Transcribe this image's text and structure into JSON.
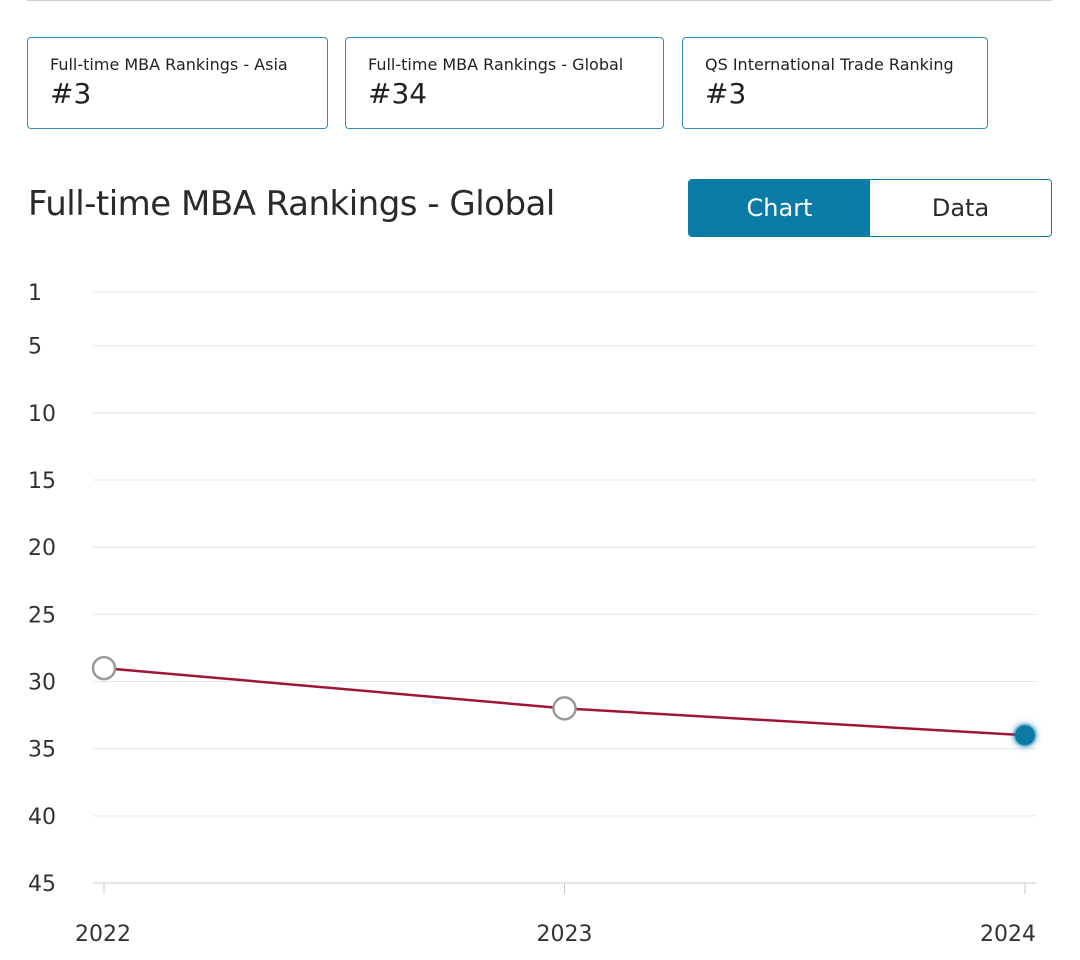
{
  "cards": [
    {
      "label": "Full-time MBA Rankings - Asia",
      "value": "#3"
    },
    {
      "label": "Full-time MBA Rankings - Global",
      "value": "#34"
    },
    {
      "label": "QS International Trade Ranking",
      "value": "#3"
    }
  ],
  "chart_title": "Full-time MBA Rankings - Global",
  "toggle": {
    "chart_label": "Chart",
    "data_label": "Data",
    "selected": "Chart"
  },
  "colors": {
    "accent": "#0a7aa6",
    "line": "#a01535",
    "card_border": "#2f8fb5",
    "gridline": "#e6e6e6"
  },
  "chart_data": {
    "type": "line",
    "title": "Full-time MBA Rankings - Global",
    "x": [
      "2022",
      "2023",
      "2024"
    ],
    "values": [
      29,
      32,
      34
    ],
    "ylim": [
      1,
      45
    ],
    "y_ticks": [
      1,
      5,
      10,
      15,
      20,
      25,
      30,
      35,
      40,
      45
    ],
    "y_inverted": true,
    "grid": true,
    "highlighted_point": "2024"
  }
}
